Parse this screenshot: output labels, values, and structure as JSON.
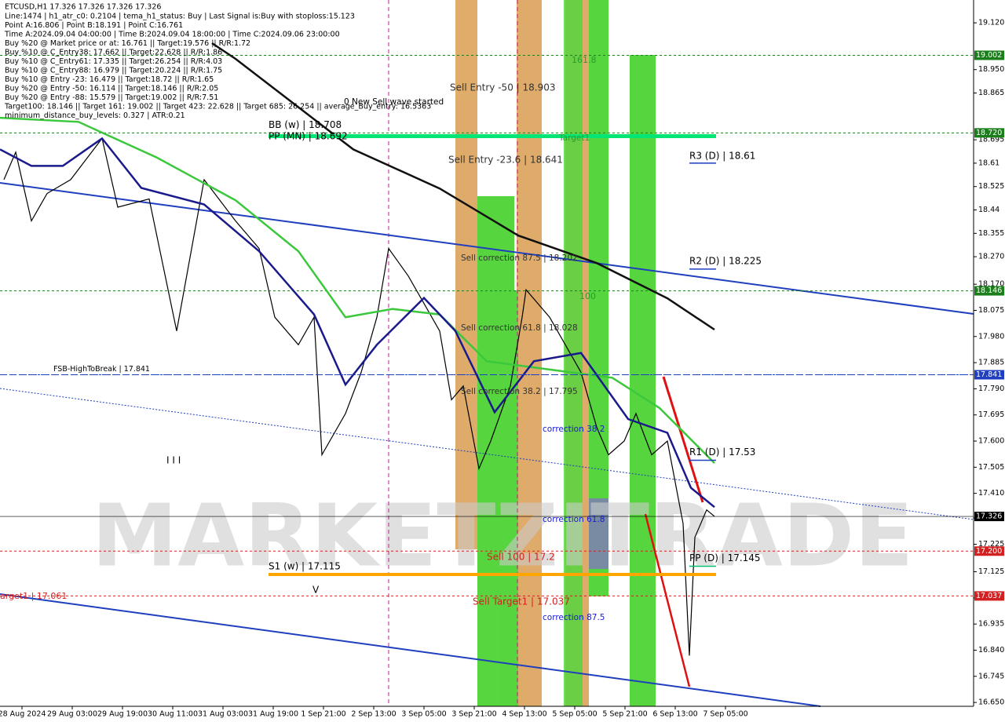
{
  "chart_data": {
    "type": "line",
    "symbol": "ETCUSD,H1  17.326 17.326 17.326 17.326",
    "info_lines": [
      "Line:1474 | h1_atr_c0: 0.2104 | tema_h1_status: Buy | Last Signal is:Buy with stoploss:15.123",
      "Point A:16.806 | Point B:18.191 | Point C:16.761",
      "Time A:2024.09.04 04:00:00 | Time B:2024.09.04 18:00:00 | Time C:2024.09.06 23:00:00",
      "Buy %20 @ Market price or at: 16.761 || Target:19.576 || R/R:1.72",
      "Buy %10 @ C_Entry38: 17.662 || Target:22.628 || R/R:1.86",
      "Buy %10 @ C_Entry61: 17.335 || Target:26.254 || R/R:4.03",
      "Buy %10 @ C_Entry88: 16.979 || Target:20.224 || R/R:1.75",
      "Buy %10 @ Entry -23: 16.479 || Target:18.72 || R/R:1.65",
      "Buy %20 @ Entry -50: 16.114 || Target:18.146 || R/R:2.05",
      "Buy %20 @ Entry -88: 15.579 || Target:19.002 || R/R:7.51",
      "Target100: 18.146 || Target 161: 19.002 || Target 423: 22.628 || Target 685: 26.254 || average_Buy_entry: 16.5363",
      "minimum_distance_buy_levels: 0.327 | ATR:0.21"
    ],
    "xlim": [
      0,
      310
    ],
    "ylim": [
      16.636,
      19.203
    ],
    "xticks": [
      {
        "value": 7,
        "label": "28 Aug 2024"
      },
      {
        "value": 23,
        "label": "29 Aug 03:00"
      },
      {
        "value": 39,
        "label": "29 Aug 19:00"
      },
      {
        "value": 55,
        "label": "30 Aug 11:00"
      },
      {
        "value": 71,
        "label": "31 Aug 03:00"
      },
      {
        "value": 87,
        "label": "31 Aug 19:00"
      },
      {
        "value": 103,
        "label": "1 Sep 21:00"
      },
      {
        "value": 119,
        "label": "2 Sep 13:00"
      },
      {
        "value": 135,
        "label": "3 Sep 05:00"
      },
      {
        "value": 151,
        "label": "3 Sep 21:00"
      },
      {
        "value": 167,
        "label": "4 Sep 13:00"
      },
      {
        "value": 183,
        "label": "5 Sep 05:00"
      },
      {
        "value": 199,
        "label": "5 Sep 21:00"
      },
      {
        "value": 215,
        "label": "6 Sep 13:00"
      },
      {
        "value": 231,
        "label": "7 Sep 05:00"
      }
    ],
    "yticks": [
      {
        "value": 19.12,
        "label": "19.120"
      },
      {
        "value": 18.95,
        "label": "18.950"
      },
      18.865,
      18.695,
      18.61,
      18.525,
      18.44,
      18.355,
      {
        "value": 18.27,
        "label": "18.270"
      },
      {
        "value": 18.17,
        "label": "18.170"
      },
      18.075,
      {
        "value": 17.98,
        "label": "17.980"
      },
      17.885,
      {
        "value": 17.79,
        "label": "17.790"
      },
      17.695,
      {
        "value": 17.6,
        "label": "17.600"
      },
      17.505,
      {
        "value": 17.41,
        "label": "17.410"
      },
      {
        "value": 17.32,
        "label": "17.320"
      },
      17.225,
      17.125,
      {
        "value": 17.03,
        "label": "17.030"
      },
      16.935,
      {
        "value": 16.84,
        "label": "16.840"
      },
      16.745,
      {
        "value": 16.65,
        "label": "16.650"
      }
    ],
    "price_marks": [
      {
        "value": 19.002,
        "color": "#1a7f1a"
      },
      {
        "value": 18.72,
        "label": "18.720",
        "color": "#1a7f1a"
      },
      {
        "value": 18.146,
        "color": "#1a7f1a"
      },
      {
        "value": 17.841,
        "color": "#1f3fbf"
      },
      {
        "value": 17.326,
        "color": "#000000"
      },
      {
        "value": 17.2,
        "label": "17.200",
        "color": "#d32020"
      },
      {
        "value": 17.037,
        "color": "#d32020"
      }
    ],
    "series": [
      {
        "color": "#000000",
        "x": [
          1.25,
          5,
          10,
          15,
          22.5,
          32.5,
          37.5,
          47.5,
          56.25,
          65,
          75,
          82.5,
          87.5,
          95,
          100,
          102.5,
          110,
          115,
          120,
          123.75,
          130,
          135,
          140,
          143.75,
          147.5,
          152.5,
          156.25,
          162.5,
          166.25,
          167.5,
          175,
          180,
          185,
          190,
          193.75,
          198.75,
          202.5,
          207.5,
          212.5,
          217.5,
          219.5,
          221.25,
          225,
          227.5
        ],
        "values": [
          18.55,
          18.65,
          18.4,
          18.5,
          18.55,
          18.7,
          18.45,
          18.48,
          18.0,
          18.55,
          18.4,
          18.3,
          18.05,
          17.95,
          18.05,
          17.55,
          17.7,
          17.85,
          18.05,
          18.3,
          18.2,
          18.1,
          18.0,
          17.75,
          17.8,
          17.5,
          17.6,
          17.8,
          18.05,
          18.15,
          18.05,
          17.95,
          17.85,
          17.65,
          17.55,
          17.6,
          17.7,
          17.55,
          17.6,
          17.3,
          16.82,
          17.25,
          17.35,
          17.326
        ]
      },
      {
        "color": "#111111",
        "x": [
          67.5,
          75,
          112.5,
          140,
          165,
          190,
          212.5,
          227.5
        ],
        "values": [
          19.046,
          18.989,
          18.66,
          18.518,
          18.347,
          18.247,
          18.119,
          18.005
        ]
      },
      {
        "color": "#3cc83c",
        "x": [
          0,
          25,
          50,
          75,
          95,
          110,
          125,
          140,
          155,
          175,
          195,
          210,
          227.5
        ],
        "values": [
          18.775,
          18.76,
          18.63,
          18.475,
          18.29,
          18.05,
          18.08,
          18.06,
          17.89,
          17.86,
          17.83,
          17.72,
          17.52
        ]
      },
      {
        "color": "#1a1a8c",
        "x": [
          0,
          10,
          20,
          32.5,
          45,
          65,
          82.5,
          100,
          110,
          120,
          135,
          145,
          157.5,
          170,
          185,
          200,
          212.5,
          220,
          227.5
        ],
        "values": [
          18.66,
          18.6,
          18.6,
          18.7,
          18.52,
          18.46,
          18.29,
          18.06,
          17.805,
          17.95,
          18.12,
          18.0,
          17.705,
          17.89,
          17.92,
          17.68,
          17.63,
          17.43,
          17.36
        ]
      }
    ],
    "levels": [
      {
        "label": "BB (w) | 18.708",
        "value": 18.708,
        "color": "#00e676"
      },
      {
        "label": "PP (MN) | 18.692",
        "value": 18.692,
        "color": "#00e676"
      },
      {
        "label": "R3 (D) | 18.61",
        "value": 18.61,
        "color": "#1f3fbf"
      },
      {
        "label": "R2 (D) | 18.225",
        "value": 18.225,
        "color": "#1f3fbf"
      },
      {
        "label": "R1 (D) | 17.53",
        "value": 17.53,
        "color": "#1f3fbf"
      },
      {
        "label": "PP (D) | 17.145",
        "value": 17.145,
        "color": "#00c070"
      },
      {
        "label": "S1 (w) | 17.115",
        "value": 17.115,
        "color": "#ffa500"
      },
      {
        "label": "FSB-HighToBreak | 17.841",
        "value": 17.841,
        "color": "#1f3fbf"
      }
    ],
    "annotations": [
      "Sell Entry -50 | 18.903",
      "Sell Entry -23.6 | 18.641",
      "Sell correction 87.5 | 18.202",
      "Sell correction 61.8 | 18.028",
      "Sell correction 38.2 | 17.795",
      "Sell 100 | 17.2",
      "Sell Target1 | 17.037",
      "arget1 | 17.061",
      "correction 38.2",
      "correction 61.8",
      "correction 87.5",
      "0 New Sell wave started",
      "Target1",
      "161.8",
      "100",
      "I I I",
      "V"
    ]
  }
}
